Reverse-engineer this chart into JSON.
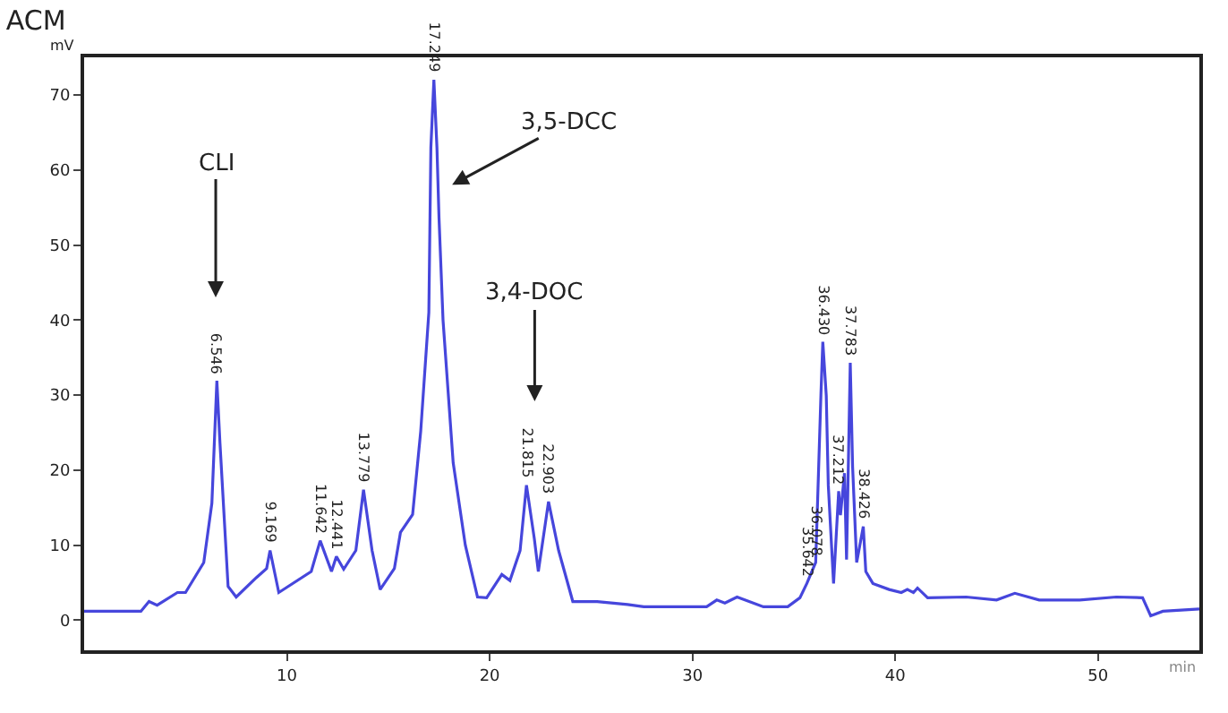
{
  "chart_data": {
    "type": "line",
    "title": "ACM",
    "xlabel": "min",
    "ylabel": "mV",
    "x": [
      0,
      2.8,
      3.2,
      3.6,
      4.6,
      5.0,
      5.9,
      6.3,
      6.546,
      6.7,
      7.1,
      7.5,
      8.5,
      9.0,
      9.169,
      9.6,
      11.2,
      11.642,
      12.2,
      12.441,
      12.8,
      13.4,
      13.779,
      14.2,
      14.6,
      15.3,
      15.6,
      16.2,
      16.6,
      17.0,
      17.1,
      17.249,
      17.4,
      17.5,
      17.7,
      18.2,
      18.8,
      19.4,
      19.85,
      20.6,
      21.0,
      21.5,
      21.815,
      22.2,
      22.4,
      22.903,
      23.4,
      24.1,
      25.3,
      26.8,
      27.6,
      30.7,
      31.2,
      31.6,
      32.2,
      33.5,
      34.7,
      35.3,
      35.642,
      36.078,
      36.34,
      36.43,
      36.6,
      36.7,
      36.96,
      37.212,
      37.3,
      37.5,
      37.6,
      37.783,
      37.9,
      38.1,
      38.426,
      38.55,
      38.9,
      39.7,
      40.3,
      40.6,
      40.9,
      41.1,
      41.6,
      43.5,
      45.0,
      45.9,
      47.1,
      49.1,
      50.9,
      52.2,
      52.6,
      53.2,
      55.0
    ],
    "series": [
      {
        "color": "#4646dc",
        "values": [
          1.2,
          1.2,
          2.5,
          2.0,
          3.7,
          3.7,
          7.7,
          15.6,
          31.9,
          23.6,
          4.5,
          3.1,
          5.7,
          6.9,
          9.3,
          3.7,
          6.5,
          10.6,
          6.5,
          8.5,
          6.8,
          9.3,
          17.4,
          9.3,
          4.1,
          6.9,
          11.7,
          14.1,
          25.2,
          41,
          63,
          72,
          63,
          53.7,
          40,
          21,
          10,
          3.1,
          3.0,
          6.1,
          5.3,
          9.3,
          18,
          10.9,
          6.5,
          15.8,
          9.3,
          2.5,
          2.5,
          2.1,
          1.8,
          1.8,
          2.7,
          2.3,
          3.1,
          1.8,
          1.8,
          3.0,
          4.9,
          7.7,
          30.3,
          37.1,
          29.9,
          18,
          4.9,
          17.2,
          14,
          19.6,
          8.1,
          34.3,
          20.4,
          7.7,
          12.5,
          6.5,
          4.9,
          4.1,
          3.7,
          4.1,
          3.7,
          4.3,
          3.0,
          3.1,
          2.7,
          3.6,
          2.7,
          2.7,
          3.1,
          3.0,
          0.6,
          1.2,
          1.5
        ]
      }
    ],
    "xlim": [
      0,
      55
    ],
    "ylim": [
      -4,
      75
    ],
    "xticks": [
      10,
      20,
      30,
      40,
      50
    ],
    "yticks": [
      0,
      10,
      20,
      30,
      40,
      50,
      60,
      70
    ],
    "marker": "none",
    "line_style": "solid",
    "annotations": [
      {
        "text": "6.546",
        "x": 6.546,
        "y": 31.9
      },
      {
        "text": "9.169",
        "x": 9.169,
        "y": 9.3
      },
      {
        "text": "11.642",
        "x": 11.642,
        "y": 10.6
      },
      {
        "text": "12.441",
        "x": 12.441,
        "y": 8.5
      },
      {
        "text": "13.779",
        "x": 13.779,
        "y": 17.4
      },
      {
        "text": "17.249",
        "x": 17.249,
        "y": 72
      },
      {
        "text": "21.815",
        "x": 21.815,
        "y": 18
      },
      {
        "text": "22.903",
        "x": 22.903,
        "y": 15.8
      },
      {
        "text": "35.642",
        "x": 35.642,
        "y": 4.9
      },
      {
        "text": "36.078",
        "x": 36.078,
        "y": 7.7
      },
      {
        "text": "36.430",
        "x": 36.43,
        "y": 37.1
      },
      {
        "text": "37.212",
        "x": 37.212,
        "y": 17.2
      },
      {
        "text": "37.783",
        "x": 37.783,
        "y": 34.3
      },
      {
        "text": "38.426",
        "x": 38.426,
        "y": 12.5
      },
      "CLI",
      "3,5-DCC",
      "3,4-DOC"
    ]
  }
}
